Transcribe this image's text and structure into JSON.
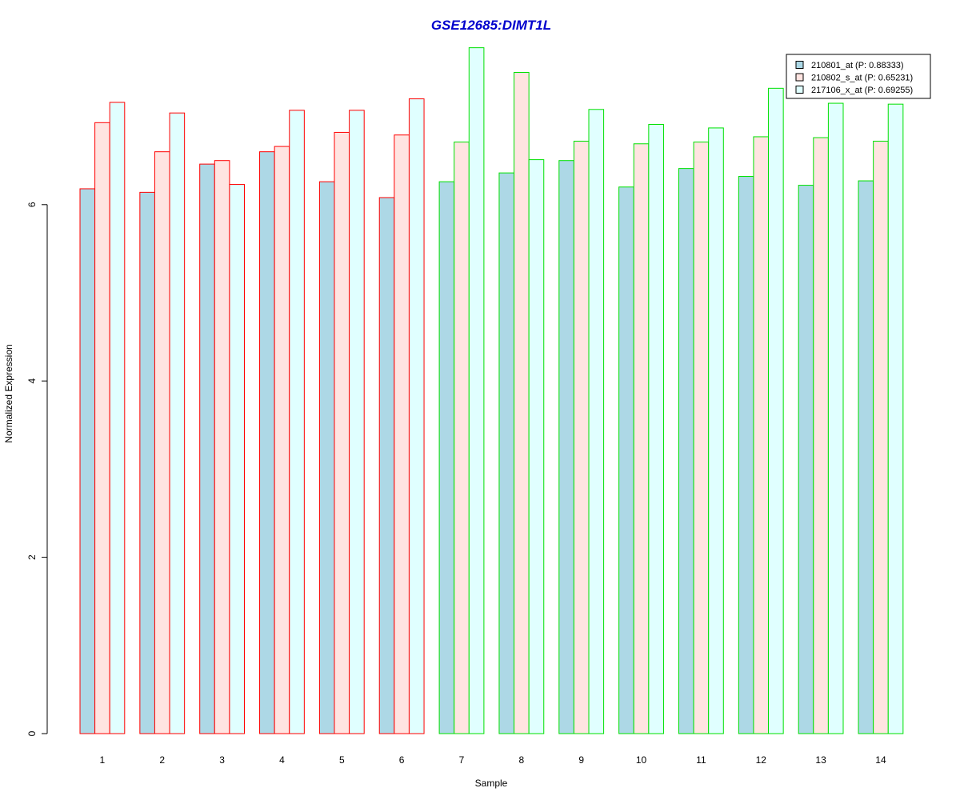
{
  "chart_data": {
    "type": "bar",
    "title": "GSE12685:DIMT1L",
    "xlabel": "Sample",
    "ylabel": "Normalized Expression",
    "ylim": [
      0,
      7.85
    ],
    "yticks": [
      0,
      2,
      4,
      6
    ],
    "categories": [
      "1",
      "2",
      "3",
      "4",
      "5",
      "6",
      "7",
      "8",
      "9",
      "10",
      "11",
      "12",
      "13",
      "14"
    ],
    "series": [
      {
        "name": "210801_at (P: 0.88333)",
        "values": [
          6.18,
          6.14,
          6.46,
          6.6,
          6.26,
          6.08,
          6.26,
          6.36,
          6.5,
          6.2,
          6.41,
          6.32,
          6.22,
          6.27
        ]
      },
      {
        "name": "210802_s_at (P: 0.65231)",
        "values": [
          6.93,
          6.6,
          6.5,
          6.66,
          6.82,
          6.79,
          6.71,
          7.5,
          6.72,
          6.69,
          6.71,
          6.77,
          6.76,
          6.72
        ]
      },
      {
        "name": "217106_x_at (P: 0.69255)",
        "values": [
          7.16,
          7.04,
          6.23,
          7.07,
          7.07,
          7.2,
          7.78,
          6.51,
          7.08,
          6.91,
          6.87,
          7.32,
          7.15,
          7.14
        ]
      }
    ],
    "group_of_sample": [
      1,
      1,
      1,
      1,
      1,
      1,
      2,
      2,
      2,
      2,
      2,
      2,
      2,
      2
    ],
    "group_outline_colors": [
      "#ff0000",
      "#00e000"
    ],
    "series_fill_colors": [
      "#add8e6",
      "#ffe4e1",
      "#e0ffff"
    ],
    "title_color": "#0000cd",
    "legend_position": "top-right",
    "grid": false
  }
}
